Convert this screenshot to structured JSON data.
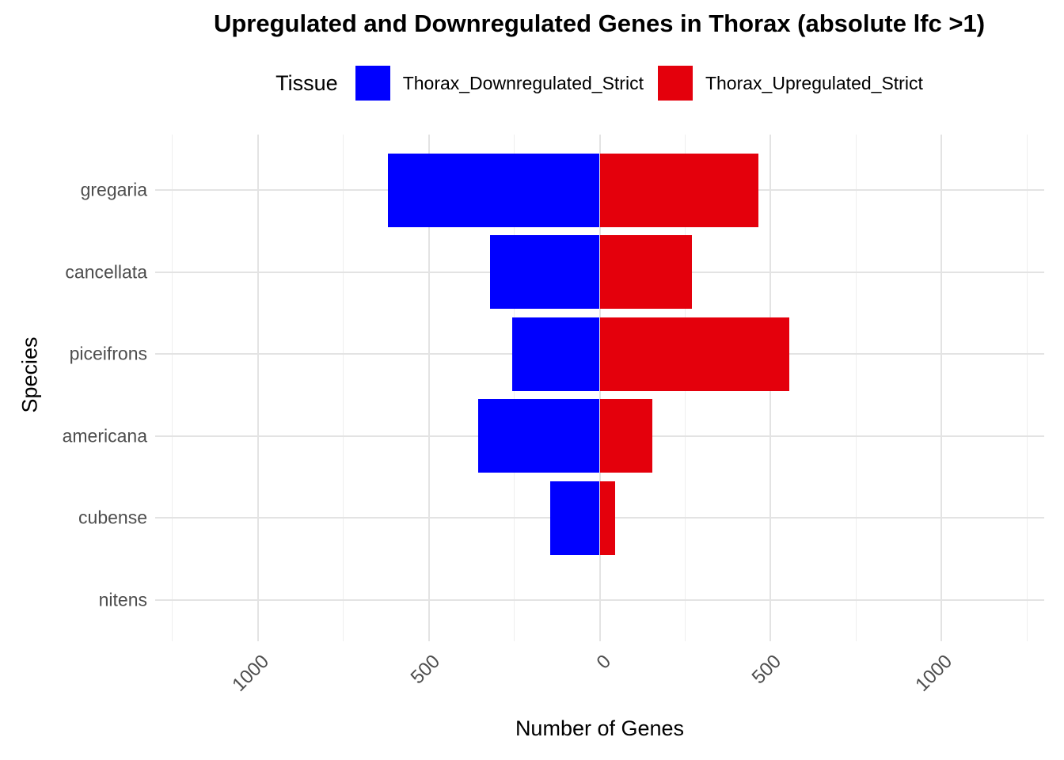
{
  "title": "Upregulated and Downregulated Genes in Thorax (absolute lfc >1)",
  "legend": {
    "title": "Tissue",
    "items": [
      {
        "label": "Thorax_Downregulated_Strict",
        "color": "#0000ff"
      },
      {
        "label": "Thorax_Upregulated_Strict",
        "color": "#e4000c"
      }
    ]
  },
  "axes": {
    "x_title": "Number of Genes",
    "y_title": "Species"
  },
  "chart_data": {
    "type": "bar",
    "orientation": "horizontal-diverging",
    "title": "Upregulated and Downregulated Genes in Thorax (absolute lfc >1)",
    "xlabel": "Number of Genes",
    "ylabel": "Species",
    "categories": [
      "gregaria",
      "cancellata",
      "piceifrons",
      "americana",
      "cubense",
      "nitens"
    ],
    "series": [
      {
        "name": "Thorax_Downregulated_Strict",
        "direction": "left",
        "color": "#0000ff",
        "values": [
          620,
          320,
          255,
          355,
          145,
          0
        ]
      },
      {
        "name": "Thorax_Upregulated_Strict",
        "direction": "right",
        "color": "#e4000c",
        "values": [
          465,
          270,
          555,
          155,
          45,
          0
        ]
      }
    ],
    "x_axis": {
      "range": [
        -1300,
        1300
      ],
      "tick_values": [
        -1000,
        -500,
        0,
        500,
        1000
      ],
      "tick_labels": [
        "1000",
        "500",
        "0",
        "500",
        "1000"
      ],
      "minor_tick_values": [
        -1250,
        -750,
        -250,
        250,
        750,
        1250
      ]
    },
    "grid": true,
    "legend_position": "top",
    "colors": {
      "grid_major": "#e3e3e3",
      "grid_minor": "#efefef",
      "axis_text": "#4d4d4d",
      "background": "#ffffff"
    }
  }
}
